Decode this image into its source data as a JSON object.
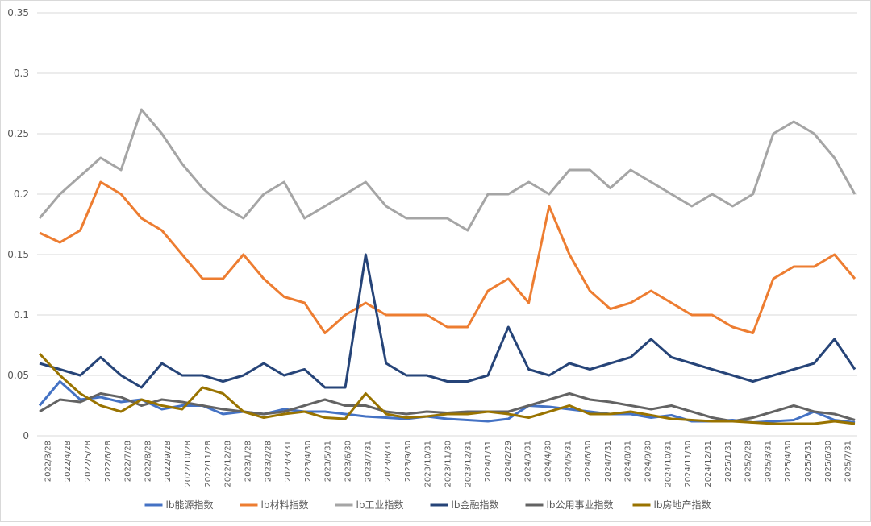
{
  "chart_data": {
    "type": "line",
    "title": "",
    "xlabel": "",
    "ylabel": "",
    "ylim": [
      0,
      0.35
    ],
    "yticks": [
      "0",
      "0.05",
      "0.1",
      "0.15",
      "0.2",
      "0.25",
      "0.3",
      "0.35"
    ],
    "grid": true,
    "legend_position": "bottom",
    "x_tick_labels": [
      "2022/3/28",
      "2022/4/28",
      "2022/5/28",
      "2022/6/28",
      "2022/7/28",
      "2022/8/28",
      "2022/9/28",
      "2022/10/28",
      "2022/11/28",
      "2022/12/28",
      "2023/1/28",
      "2023/2/28",
      "2023/3/31",
      "2023/4/30",
      "2023/5/31",
      "2023/6/30",
      "2023/7/31",
      "2023/8/31",
      "2023/9/30",
      "2023/10/31",
      "2023/11/30",
      "2023/12/31",
      "2024/1/31",
      "2024/2/29",
      "2024/3/31",
      "2024/4/30",
      "2024/5/31",
      "2024/6/30",
      "2024/7/31",
      "2024/8/31",
      "2024/9/30",
      "2024/10/31",
      "2024/11/30",
      "2024/12/31",
      "2025/1/31",
      "2025/2/28",
      "2025/3/31",
      "2025/4/30",
      "2025/5/31",
      "2025/6/30",
      "2025/7/31"
    ],
    "series": [
      {
        "name": "lb能源指数",
        "color": "#4472C4",
        "values": [
          0.025,
          0.045,
          0.03,
          0.032,
          0.028,
          0.03,
          0.022,
          0.025,
          0.025,
          0.018,
          0.02,
          0.018,
          0.022,
          0.02,
          0.02,
          0.018,
          0.016,
          0.015,
          0.014,
          0.016,
          0.014,
          0.013,
          0.012,
          0.014,
          0.025,
          0.024,
          0.022,
          0.02,
          0.018,
          0.018,
          0.015,
          0.017,
          0.012,
          0.012,
          0.013,
          0.011,
          0.012,
          0.013,
          0.02,
          0.013,
          0.011
        ]
      },
      {
        "name": "lb材料指数",
        "color": "#ED7D31",
        "values": [
          0.168,
          0.16,
          0.17,
          0.21,
          0.2,
          0.18,
          0.17,
          0.15,
          0.13,
          0.13,
          0.15,
          0.13,
          0.115,
          0.11,
          0.085,
          0.1,
          0.11,
          0.1,
          0.1,
          0.1,
          0.09,
          0.09,
          0.12,
          0.13,
          0.11,
          0.19,
          0.15,
          0.12,
          0.105,
          0.11,
          0.12,
          0.11,
          0.1,
          0.1,
          0.09,
          0.085,
          0.13,
          0.14,
          0.14,
          0.15,
          0.13
        ]
      },
      {
        "name": "lb工业指数",
        "color": "#A5A5A5",
        "values": [
          0.18,
          0.2,
          0.215,
          0.23,
          0.22,
          0.27,
          0.25,
          0.225,
          0.205,
          0.19,
          0.18,
          0.2,
          0.21,
          0.18,
          0.19,
          0.2,
          0.21,
          0.19,
          0.18,
          0.18,
          0.18,
          0.17,
          0.2,
          0.2,
          0.21,
          0.2,
          0.22,
          0.22,
          0.205,
          0.22,
          0.21,
          0.2,
          0.19,
          0.2,
          0.19,
          0.2,
          0.25,
          0.26,
          0.25,
          0.23,
          0.2
        ]
      },
      {
        "name": "lb金融指数",
        "color": "#264478",
        "values": [
          0.06,
          0.055,
          0.05,
          0.065,
          0.05,
          0.04,
          0.06,
          0.05,
          0.05,
          0.045,
          0.05,
          0.06,
          0.05,
          0.055,
          0.04,
          0.04,
          0.15,
          0.06,
          0.05,
          0.05,
          0.045,
          0.045,
          0.05,
          0.09,
          0.055,
          0.05,
          0.06,
          0.055,
          0.06,
          0.065,
          0.08,
          0.065,
          0.06,
          0.055,
          0.05,
          0.045,
          0.05,
          0.055,
          0.06,
          0.08,
          0.055
        ]
      },
      {
        "name": "lb公用事业指数",
        "color": "#636363",
        "values": [
          0.02,
          0.03,
          0.028,
          0.035,
          0.032,
          0.025,
          0.03,
          0.028,
          0.025,
          0.022,
          0.02,
          0.018,
          0.02,
          0.025,
          0.03,
          0.025,
          0.025,
          0.02,
          0.018,
          0.02,
          0.019,
          0.02,
          0.02,
          0.02,
          0.025,
          0.03,
          0.035,
          0.03,
          0.028,
          0.025,
          0.022,
          0.025,
          0.02,
          0.015,
          0.012,
          0.015,
          0.02,
          0.025,
          0.02,
          0.018,
          0.013
        ]
      },
      {
        "name": "lb房地产指数",
        "color": "#997300",
        "values": [
          0.068,
          0.05,
          0.035,
          0.025,
          0.02,
          0.03,
          0.025,
          0.022,
          0.04,
          0.035,
          0.02,
          0.015,
          0.018,
          0.02,
          0.015,
          0.014,
          0.035,
          0.018,
          0.015,
          0.016,
          0.018,
          0.018,
          0.02,
          0.018,
          0.015,
          0.02,
          0.025,
          0.018,
          0.018,
          0.02,
          0.017,
          0.014,
          0.013,
          0.012,
          0.012,
          0.011,
          0.01,
          0.01,
          0.01,
          0.012,
          0.01
        ]
      }
    ]
  }
}
